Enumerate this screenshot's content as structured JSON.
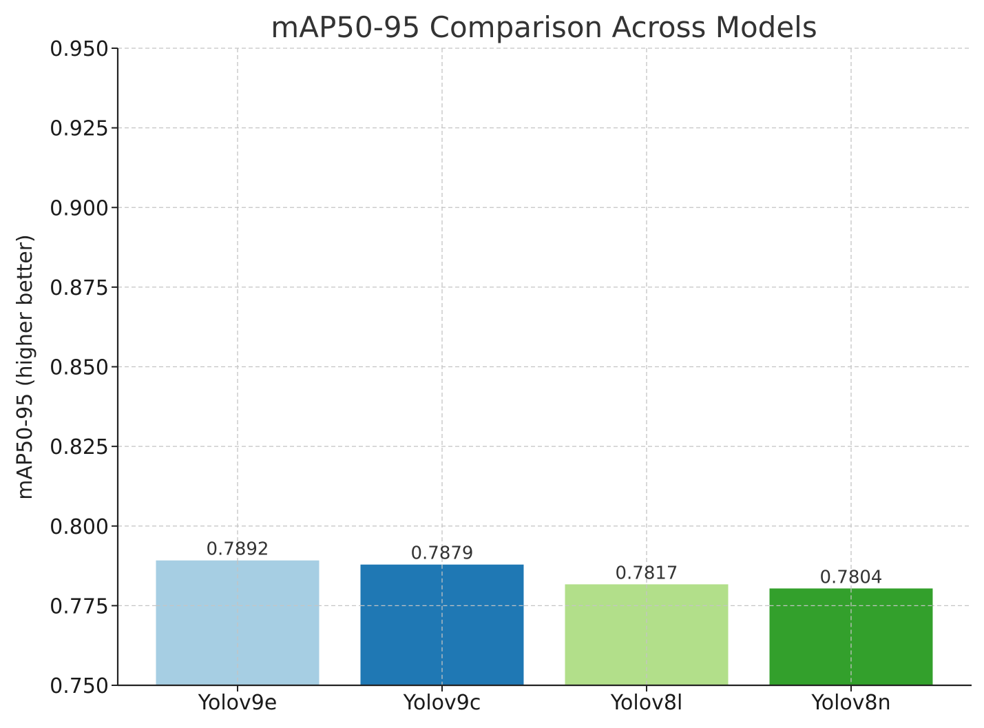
{
  "chart_data": {
    "type": "bar",
    "title": "mAP50-95 Comparison Across Models",
    "xlabel": "",
    "ylabel": "mAP50-95 (higher better)",
    "categories": [
      "Yolov9e",
      "Yolov9c",
      "Yolov8l",
      "Yolov8n"
    ],
    "values": [
      0.7892,
      0.7879,
      0.7817,
      0.7804
    ],
    "data_labels": [
      "0.7892",
      "0.7879",
      "0.7817",
      "0.7804"
    ],
    "colors": [
      "#a6cee3",
      "#1f78b4",
      "#b2df8a",
      "#33a02c"
    ],
    "ylim": [
      0.75,
      0.95
    ],
    "yticks": [
      0.75,
      0.775,
      0.8,
      0.825,
      0.85,
      0.875,
      0.9,
      0.925,
      0.95
    ],
    "ytick_labels": [
      "0.750",
      "0.775",
      "0.800",
      "0.825",
      "0.850",
      "0.875",
      "0.900",
      "0.925",
      "0.950"
    ],
    "grid": true,
    "legend": "none"
  }
}
